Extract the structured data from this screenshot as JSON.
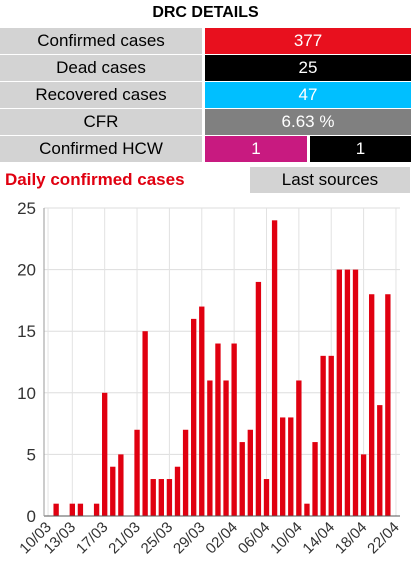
{
  "header": {
    "title": "DRC DETAILS"
  },
  "stats": {
    "confirmed": {
      "label": "Confirmed cases",
      "value": "377",
      "color": "#e8101e"
    },
    "dead": {
      "label": "Dead cases",
      "value": "25",
      "color": "#000000"
    },
    "recovered": {
      "label": "Recovered cases",
      "value": "47",
      "color": "#00bfff"
    },
    "cfr": {
      "label": "CFR",
      "value": "6.63 %",
      "color": "#808080"
    },
    "hcw": {
      "label": "Confirmed HCW",
      "value_a": "1",
      "value_b": "1",
      "color_a": "#c81a80",
      "color_b": "#000000"
    }
  },
  "daily": {
    "title": "Daily confirmed cases",
    "sources_label": "Last sources"
  },
  "chart_data": {
    "type": "bar",
    "bar_color": "#e00010",
    "ylim": [
      0,
      25
    ],
    "yticks": [
      0,
      5,
      10,
      15,
      20,
      25
    ],
    "xtick_labels": [
      "10/03",
      "13/03",
      "17/03",
      "21/03",
      "25/03",
      "29/03",
      "02/04",
      "06/04",
      "10/04",
      "14/04",
      "18/04",
      "22/04"
    ],
    "categories": [
      "10/03",
      "11/03",
      "12/03",
      "13/03",
      "14/03",
      "15/03",
      "16/03",
      "17/03",
      "18/03",
      "19/03",
      "20/03",
      "21/03",
      "22/03",
      "23/03",
      "24/03",
      "25/03",
      "26/03",
      "27/03",
      "28/03",
      "29/03",
      "30/03",
      "31/03",
      "01/04",
      "02/04",
      "03/04",
      "04/04",
      "05/04",
      "06/04",
      "07/04",
      "08/04",
      "09/04",
      "10/04",
      "11/04",
      "12/04",
      "13/04",
      "14/04",
      "15/04",
      "16/04",
      "17/04",
      "18/04",
      "19/04",
      "20/04",
      "21/04",
      "22/04"
    ],
    "values": [
      0,
      1,
      0,
      1,
      1,
      0,
      1,
      10,
      4,
      5,
      0,
      7,
      15,
      3,
      3,
      3,
      4,
      7,
      16,
      17,
      11,
      14,
      11,
      14,
      6,
      7,
      19,
      3,
      24,
      8,
      8,
      11,
      1,
      6,
      13,
      13,
      20,
      20,
      20,
      5,
      18,
      9,
      18,
      0
    ]
  }
}
